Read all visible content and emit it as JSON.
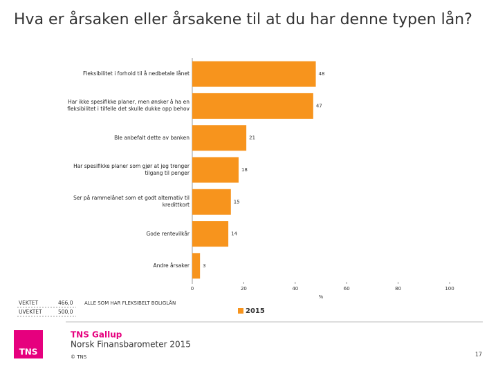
{
  "title": "Hva er årsaken eller årsakene til at du har denne typen lån?",
  "chart_data": {
    "type": "hbar",
    "categories": [
      "Fleksibilitet i forhold til å nedbetale lånet",
      "Har ikke spesifikke planer, men ønsker å ha en fleksibilitet i tilfelle det skulle dukke opp behov",
      "Ble anbefalt dette av banken",
      "Har spesifikke planer som gjør at jeg trenger tilgang til penger",
      "Ser på rammelånet som et godt alternativ til kredittkort",
      "Gode rentevilkår",
      "Andre årsaker"
    ],
    "series": [
      {
        "name": "2015",
        "color": "#f7941d",
        "values": [
          48,
          47,
          21,
          18,
          15,
          14,
          3
        ]
      }
    ],
    "x_label": "%",
    "xlim": [
      0,
      100
    ],
    "xticks": [
      0,
      20,
      40,
      60,
      80,
      100
    ]
  },
  "sample": {
    "weighted_label": "VEKTET",
    "weighted_n": "466,0",
    "unweighted_label": "UVEKTET",
    "unweighted_n": "500,0",
    "base": "ALLE SOM HAR FLEKSIBELT BOLIGLÅN"
  },
  "footer": {
    "logo": "TNS",
    "brand": "TNS Gallup",
    "report": "Norsk Finansbarometer 2015",
    "copyright": "© TNS",
    "page": "17"
  }
}
